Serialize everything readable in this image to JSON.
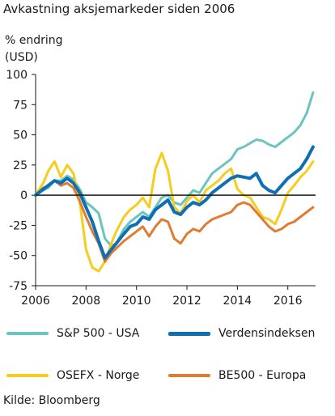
{
  "title": "Avkastning aksjemarkeder siden 2006",
  "ylabel_line1": "% endring",
  "ylabel_line2": "(USD)",
  "source": "Kilde: Bloomberg",
  "legend": [
    {
      "label": "S&P 500 - USA"
    },
    {
      "label": "Verdensindeksen"
    },
    {
      "label": "OSEFX - Norge"
    },
    {
      "label": "BE500 - Europa"
    }
  ],
  "chart_data": {
    "type": "line",
    "xlim": [
      2006,
      2017.1
    ],
    "ylim": [
      -75,
      100
    ],
    "xticks": [
      2006,
      2008,
      2010,
      2012,
      2014,
      2016
    ],
    "yticks": [
      100,
      75,
      50,
      25,
      0,
      -25,
      -50,
      -75
    ],
    "grid": false,
    "zero_line": true,
    "legend_position": "bottom",
    "series": [
      {
        "name": "S&P 500 - USA",
        "color": "#6cc4be",
        "width": 3,
        "x": [
          2006.0,
          2006.3,
          2006.5,
          2006.75,
          2007.0,
          2007.25,
          2007.5,
          2007.75,
          2008.0,
          2008.25,
          2008.5,
          2008.75,
          2009.0,
          2009.2,
          2009.5,
          2009.75,
          2010.0,
          2010.25,
          2010.5,
          2010.75,
          2011.0,
          2011.25,
          2011.5,
          2011.75,
          2012.0,
          2012.25,
          2012.5,
          2012.75,
          2013.0,
          2013.25,
          2013.5,
          2013.75,
          2014.0,
          2014.25,
          2014.5,
          2014.75,
          2015.0,
          2015.25,
          2015.5,
          2015.75,
          2016.0,
          2016.25,
          2016.5,
          2016.75,
          2017.0
        ],
        "y": [
          0,
          4,
          6,
          12,
          12,
          16,
          13,
          5,
          -6,
          -10,
          -15,
          -36,
          -42,
          -40,
          -28,
          -22,
          -18,
          -14,
          -18,
          -10,
          -2,
          0,
          -6,
          -8,
          -2,
          4,
          2,
          10,
          18,
          22,
          26,
          30,
          38,
          40,
          43,
          46,
          45,
          42,
          40,
          44,
          48,
          52,
          58,
          68,
          85
        ]
      },
      {
        "name": "Verdensindeksen",
        "color": "#0f6fb4",
        "width": 4,
        "x": [
          2006.0,
          2006.3,
          2006.5,
          2006.75,
          2007.0,
          2007.25,
          2007.5,
          2007.75,
          2008.0,
          2008.25,
          2008.5,
          2008.75,
          2009.0,
          2009.2,
          2009.5,
          2009.75,
          2010.0,
          2010.25,
          2010.5,
          2010.75,
          2011.0,
          2011.25,
          2011.5,
          2011.75,
          2012.0,
          2012.25,
          2012.5,
          2012.75,
          2013.0,
          2013.25,
          2013.5,
          2013.75,
          2014.0,
          2014.25,
          2014.5,
          2014.75,
          2015.0,
          2015.25,
          2015.5,
          2015.75,
          2016.0,
          2016.25,
          2016.5,
          2016.75,
          2017.0
        ],
        "y": [
          0,
          5,
          8,
          12,
          10,
          14,
          10,
          2,
          -10,
          -22,
          -38,
          -52,
          -45,
          -40,
          -32,
          -26,
          -24,
          -18,
          -20,
          -12,
          -8,
          -4,
          -14,
          -16,
          -10,
          -6,
          -8,
          -4,
          2,
          6,
          10,
          14,
          16,
          15,
          14,
          18,
          8,
          4,
          2,
          8,
          14,
          18,
          22,
          30,
          40
        ]
      },
      {
        "name": "OSEFX - Norge",
        "color": "#f5cd1e",
        "width": 3,
        "x": [
          2006.0,
          2006.3,
          2006.5,
          2006.75,
          2007.0,
          2007.25,
          2007.5,
          2007.75,
          2008.0,
          2008.25,
          2008.5,
          2008.75,
          2009.0,
          2009.2,
          2009.5,
          2009.75,
          2010.0,
          2010.25,
          2010.5,
          2010.75,
          2011.0,
          2011.25,
          2011.5,
          2011.75,
          2012.0,
          2012.25,
          2012.5,
          2012.75,
          2013.0,
          2013.25,
          2013.5,
          2013.75,
          2014.0,
          2014.25,
          2014.5,
          2014.75,
          2015.0,
          2015.25,
          2015.5,
          2015.75,
          2016.0,
          2016.25,
          2016.5,
          2016.75,
          2017.0
        ],
        "y": [
          0,
          10,
          20,
          28,
          15,
          25,
          18,
          -5,
          -45,
          -60,
          -63,
          -55,
          -40,
          -30,
          -18,
          -12,
          -8,
          -2,
          -10,
          22,
          35,
          20,
          -10,
          -15,
          -5,
          0,
          -6,
          4,
          8,
          12,
          18,
          22,
          5,
          0,
          -2,
          -10,
          -18,
          -20,
          -24,
          -12,
          2,
          8,
          15,
          20,
          28
        ]
      },
      {
        "name": "BE500 - Europa",
        "color": "#e07b32",
        "width": 3,
        "x": [
          2006.0,
          2006.3,
          2006.5,
          2006.75,
          2007.0,
          2007.25,
          2007.5,
          2007.75,
          2008.0,
          2008.25,
          2008.5,
          2008.75,
          2009.0,
          2009.2,
          2009.5,
          2009.75,
          2010.0,
          2010.25,
          2010.5,
          2010.75,
          2011.0,
          2011.25,
          2011.5,
          2011.75,
          2012.0,
          2012.25,
          2012.5,
          2012.75,
          2013.0,
          2013.25,
          2013.5,
          2013.75,
          2014.0,
          2014.25,
          2014.5,
          2014.75,
          2015.0,
          2015.25,
          2015.5,
          2015.75,
          2016.0,
          2016.25,
          2016.5,
          2016.75,
          2017.0
        ],
        "y": [
          0,
          6,
          8,
          12,
          8,
          10,
          6,
          -5,
          -18,
          -30,
          -40,
          -55,
          -48,
          -44,
          -38,
          -34,
          -30,
          -26,
          -34,
          -26,
          -20,
          -22,
          -36,
          -40,
          -32,
          -28,
          -30,
          -24,
          -20,
          -18,
          -16,
          -14,
          -8,
          -6,
          -8,
          -14,
          -20,
          -26,
          -30,
          -28,
          -24,
          -22,
          -18,
          -14,
          -10
        ]
      }
    ]
  }
}
